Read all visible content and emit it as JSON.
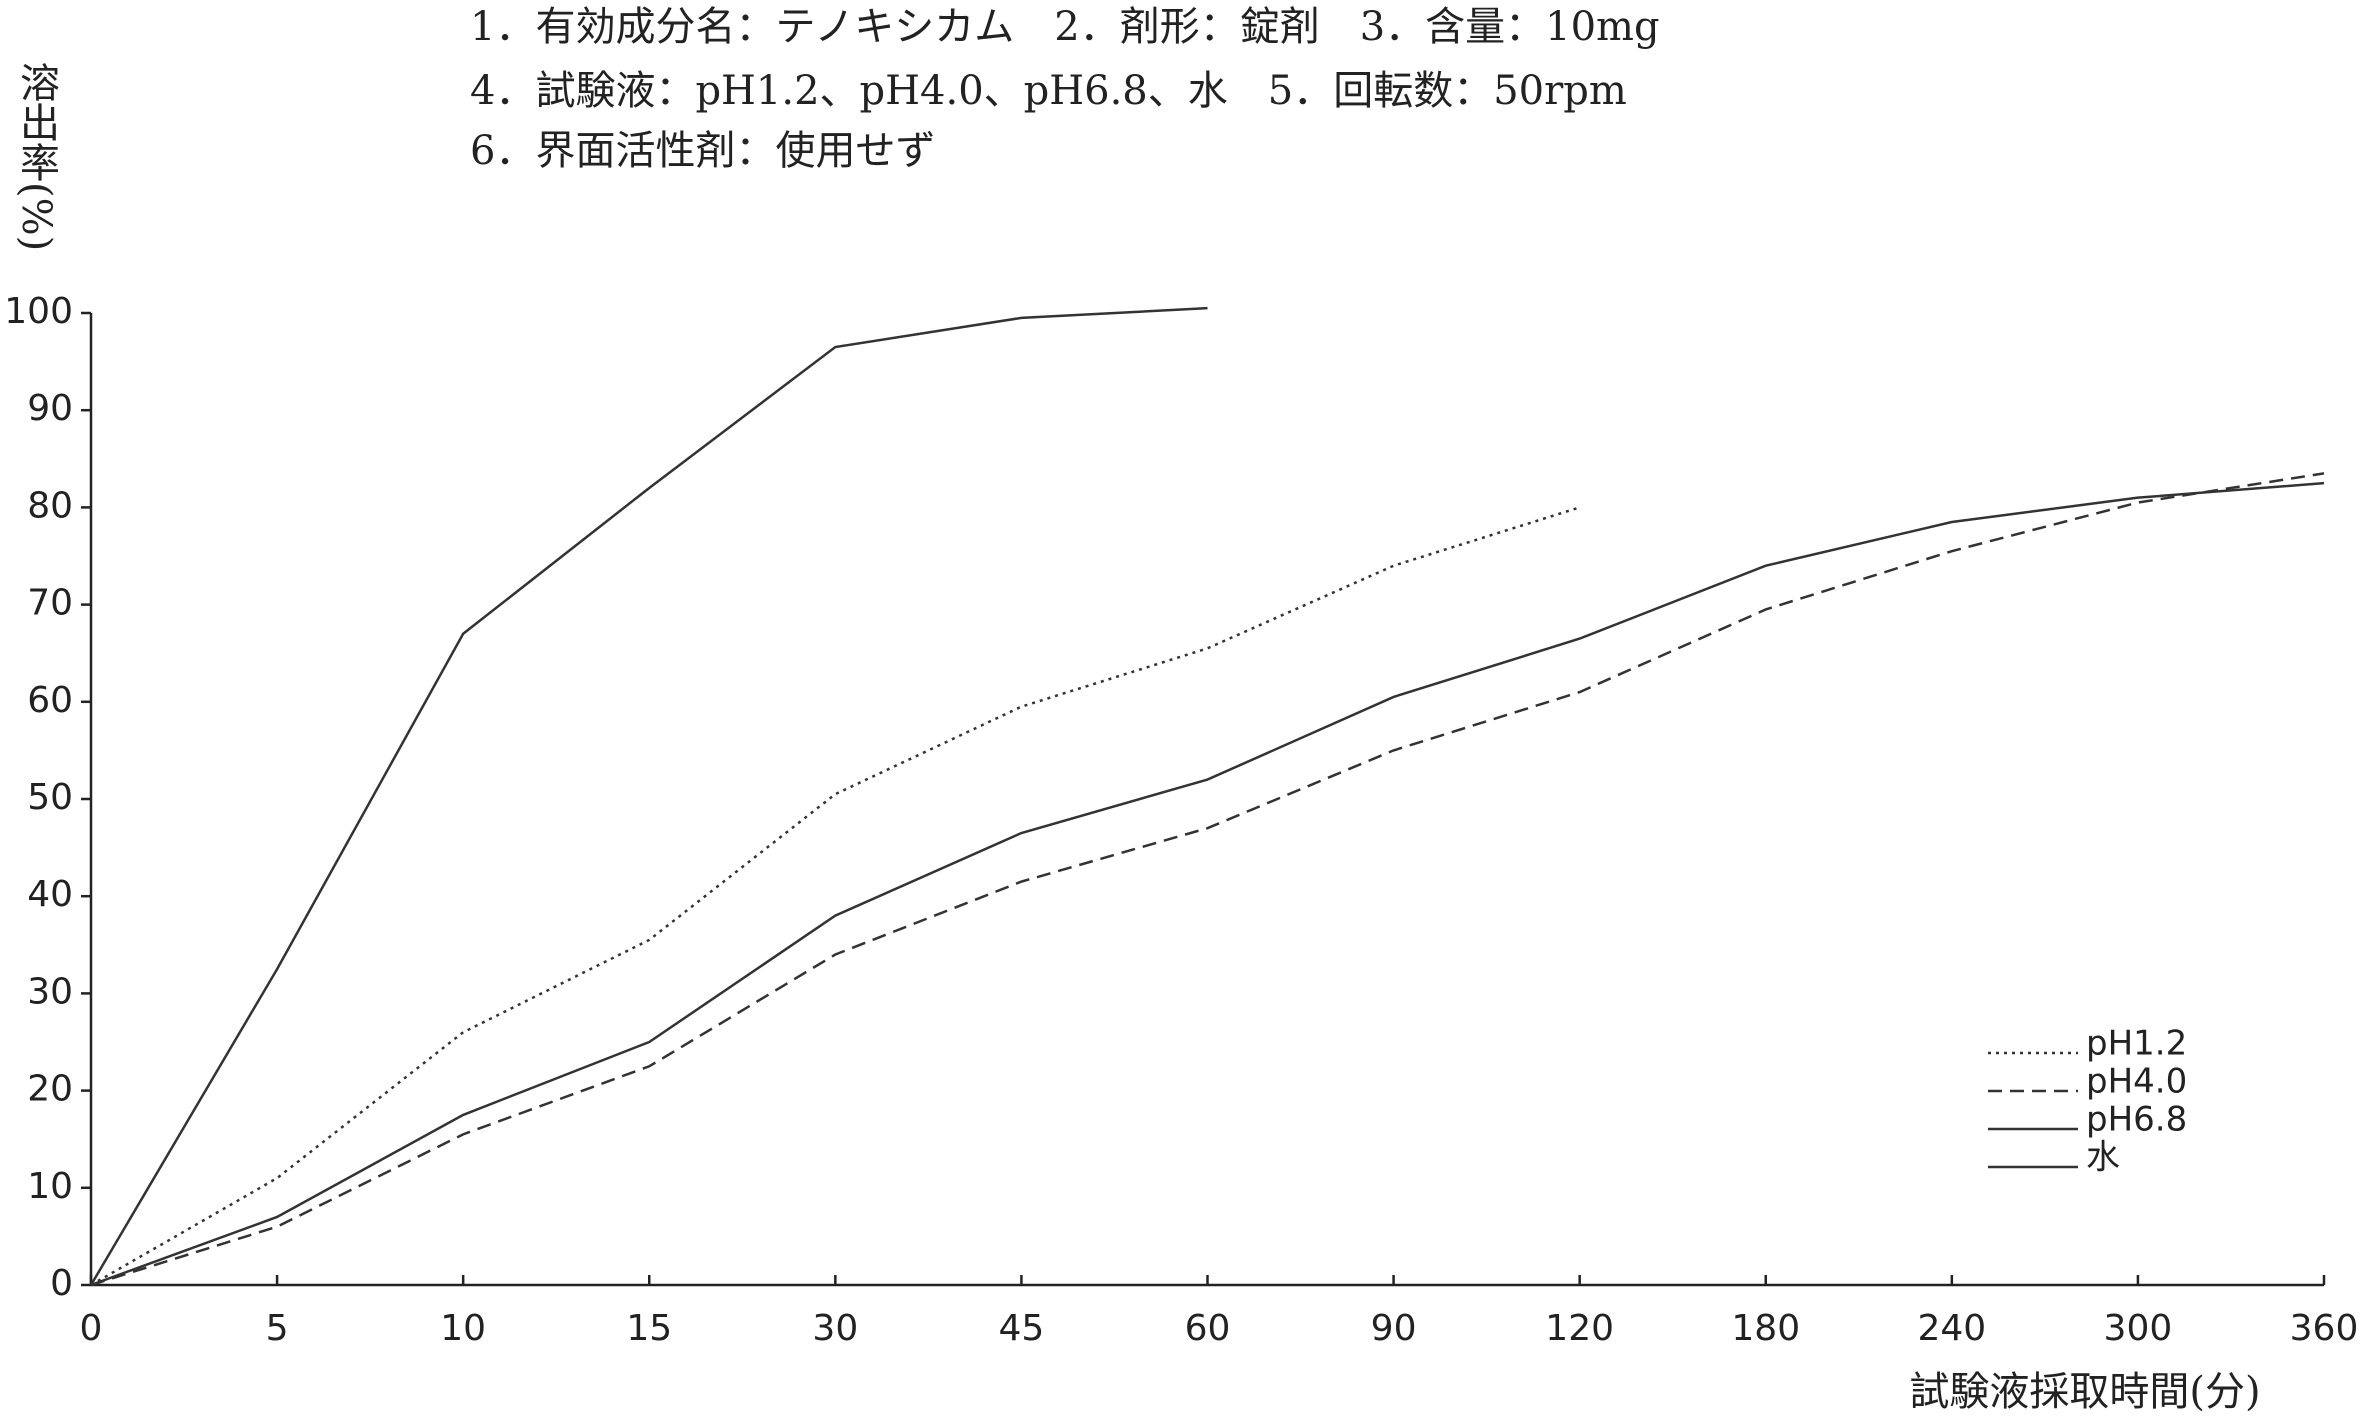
{
  "chart_data": {
    "type": "line",
    "title_lines": [
      "1．有効成分名：テノキシカム　2．剤形：錠剤　3．含量：10mg",
      "4．試験液：pH1.2、pH4.0、pH6.8、水　5．回転数：50rpm",
      "6．界面活性剤：使用せず"
    ],
    "y_label": "溶出率(%)",
    "x_label": "試験液採取時間(分)",
    "categories": [
      "0",
      "5",
      "10",
      "15",
      "30",
      "45",
      "60",
      "90",
      "120",
      "180",
      "240",
      "300",
      "360"
    ],
    "series": [
      {
        "name": "pH1.2",
        "color": "#333333",
        "style": "dotted",
        "values": [
          0,
          11,
          26,
          35.5,
          50.5,
          59.5,
          65.5,
          74,
          80,
          null,
          null,
          null,
          null
        ]
      },
      {
        "name": "pH4.0",
        "color": "#333333",
        "style": "dashed",
        "values": [
          0,
          6,
          15.5,
          22.5,
          34,
          41.5,
          47,
          55,
          61,
          69.5,
          75.5,
          80.5,
          83.5
        ]
      },
      {
        "name": "pH6.8",
        "color": "#333333",
        "style": "solid",
        "values": [
          0,
          7,
          17.5,
          25,
          38,
          46.5,
          52,
          60.5,
          66.5,
          74,
          78.5,
          81,
          82.5
        ]
      },
      {
        "name": "水",
        "color": "#333333",
        "style": "solid",
        "values": [
          0,
          32.5,
          67,
          82,
          96.5,
          99.5,
          100.5,
          null,
          null,
          null,
          null,
          null,
          null
        ]
      }
    ],
    "ylim": [
      0,
      100
    ],
    "yticks": [
      0,
      10,
      20,
      30,
      40,
      50,
      60,
      70,
      80,
      90,
      100
    ],
    "grid": false,
    "legend": "lower-right"
  }
}
